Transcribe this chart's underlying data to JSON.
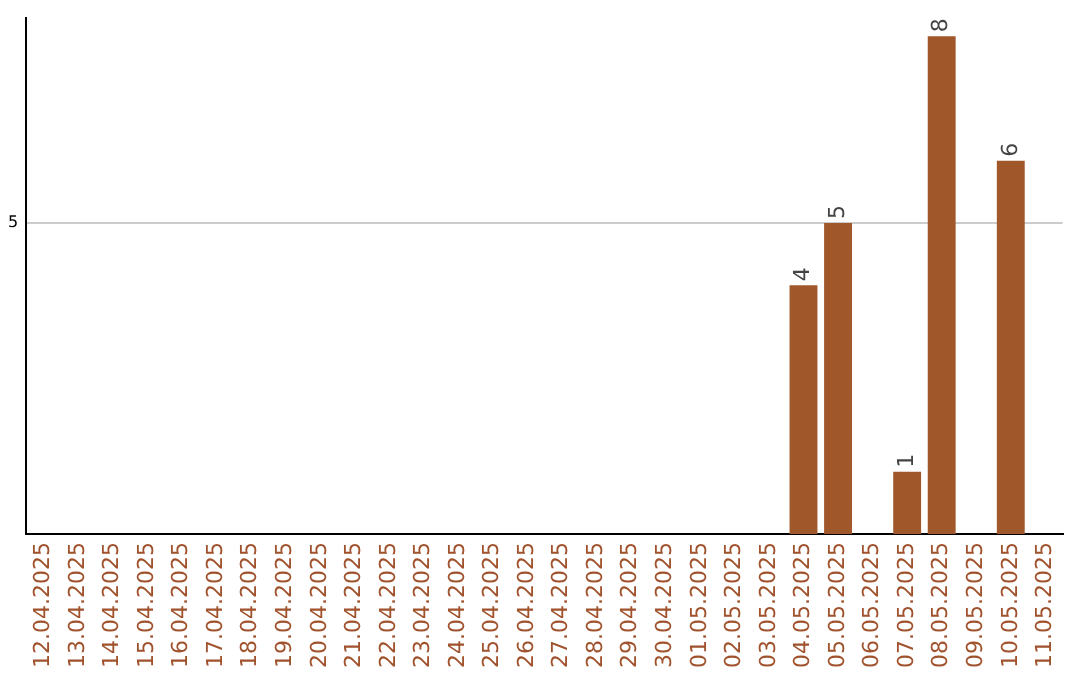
{
  "chart_data": {
    "type": "bar",
    "categories": [
      "12.04.2025",
      "13.04.2025",
      "14.04.2025",
      "15.04.2025",
      "16.04.2025",
      "17.04.2025",
      "18.04.2025",
      "19.04.2025",
      "20.04.2025",
      "21.04.2025",
      "22.04.2025",
      "23.04.2025",
      "24.04.2025",
      "25.04.2025",
      "26.04.2025",
      "27.04.2025",
      "28.04.2025",
      "29.04.2025",
      "30.04.2025",
      "01.05.2025",
      "02.05.2025",
      "03.05.2025",
      "04.05.2025",
      "05.05.2025",
      "06.05.2025",
      "07.05.2025",
      "08.05.2025",
      "09.05.2025",
      "10.05.2025",
      "11.05.2025"
    ],
    "values": [
      null,
      null,
      null,
      null,
      null,
      null,
      null,
      null,
      null,
      null,
      null,
      null,
      null,
      null,
      null,
      null,
      null,
      null,
      null,
      null,
      null,
      null,
      4,
      5,
      null,
      1,
      8,
      null,
      6,
      null
    ],
    "data_labels": true,
    "color": "#a0582b",
    "ylim": [
      0,
      8.3
    ],
    "yticks": [
      5
    ],
    "grid": "y"
  }
}
